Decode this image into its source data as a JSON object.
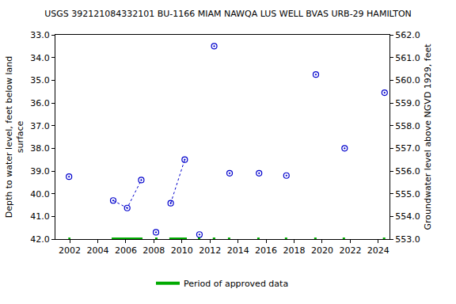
{
  "chart_data": {
    "type": "scatter",
    "title": "USGS 392121084332101 BU-1166 MIAM NAWQA LUS WELL BVAS URB-29 HAMILTON",
    "x_label": null,
    "y_label": "Depth to water level, feet below land\nsurface",
    "y2_label": "Groundwater level above NGVD 1929, feet",
    "xlim": [
      2000.98,
      2024.8
    ],
    "xticks": [
      2002,
      2004,
      2006,
      2008,
      2010,
      2012,
      2014,
      2016,
      2018,
      2020,
      2022,
      2024
    ],
    "ylim": [
      42,
      33
    ],
    "yticks": [
      {
        "value": 33,
        "label": "33.0"
      },
      {
        "value": 34,
        "label": "34.0"
      },
      {
        "value": 35,
        "label": "35.0"
      },
      {
        "value": 36,
        "label": "36.0"
      },
      {
        "value": 37,
        "label": "37.0"
      },
      {
        "value": 38,
        "label": "38.0"
      },
      {
        "value": 39,
        "label": "39.0"
      },
      {
        "value": 40,
        "label": "40.0"
      },
      {
        "value": 41,
        "label": "41.0"
      },
      {
        "value": 42,
        "label": "42.0"
      }
    ],
    "y2lim": [
      553,
      562
    ],
    "y2ticks": [
      {
        "value": 553,
        "label": "553.0"
      },
      {
        "value": 554,
        "label": "554.0"
      },
      {
        "value": 555,
        "label": "555.0"
      },
      {
        "value": 556,
        "label": "556.0"
      },
      {
        "value": 557,
        "label": "557.0"
      },
      {
        "value": 558,
        "label": "558.0"
      },
      {
        "value": 559,
        "label": "559.0"
      },
      {
        "value": 560,
        "label": "560.0"
      },
      {
        "value": 561,
        "label": "561.0"
      },
      {
        "value": 562,
        "label": "562.0"
      }
    ],
    "grid": false,
    "series": [
      {
        "name": "Depth to water level",
        "color": "#0000cc",
        "marker": "circle-open-dot",
        "line_style": "dot",
        "x": [
          2001.95,
          2003.5,
          2005.1,
          2006.1,
          2007.1,
          2007.6,
          2008.15,
          2008.7,
          2009.2,
          2010.2,
          2010.7,
          2011.25,
          2011.8,
          2012.3,
          2012.9,
          2013.4,
          2014.5,
          2015.5,
          2016.5,
          2017.45,
          2018.5,
          2019.55,
          2020.6,
          2021.6,
          2023.0,
          2024.45
        ],
        "values": [
          39.25,
          null,
          40.3,
          40.63,
          39.4,
          null,
          41.7,
          null,
          40.42,
          38.5,
          null,
          41.8,
          null,
          33.5,
          null,
          39.1,
          null,
          39.1,
          null,
          39.2,
          null,
          34.75,
          null,
          38.0,
          null,
          35.55
        ]
      }
    ],
    "approved_periods": {
      "name": "Period of approved data",
      "color": "#00aa00",
      "periods": [
        [
          2001.9,
          2002.05
        ],
        [
          2004.99,
          2007.19
        ],
        [
          2008.09,
          2008.26
        ],
        [
          2009.1,
          2010.35
        ],
        [
          2011.14,
          2011.31
        ],
        [
          2012.2,
          2012.38
        ],
        [
          2013.28,
          2013.45
        ],
        [
          2015.37,
          2015.54
        ],
        [
          2017.34,
          2017.51
        ],
        [
          2019.43,
          2019.6
        ],
        [
          2021.46,
          2021.63
        ],
        [
          2024.33,
          2024.5
        ]
      ]
    },
    "legend": "bottom"
  }
}
